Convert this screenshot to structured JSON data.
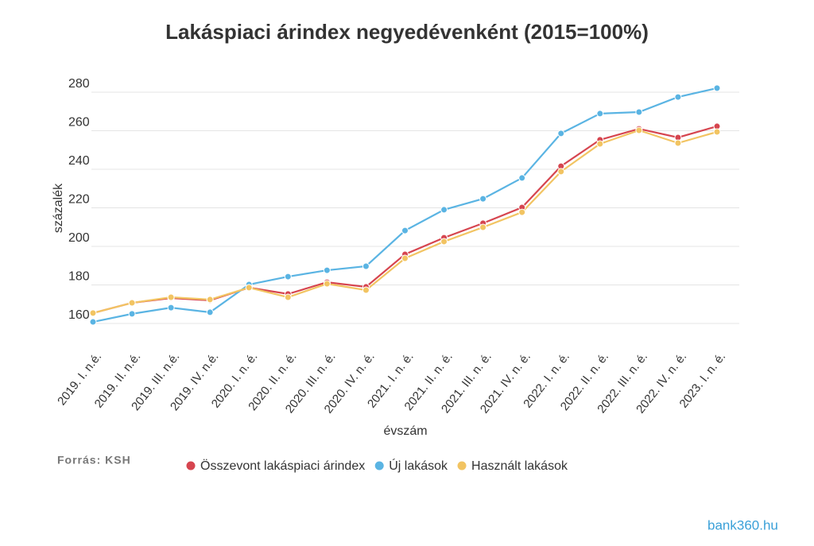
{
  "chart_data": {
    "type": "line",
    "title": "Lakáspiaci árindex negyedévenként (2015=100%)",
    "y_label": "százalék",
    "x_label": "évszám",
    "source": "Forrás: KSH",
    "logo": "bank360.hu",
    "categories": [
      "2019. I. n.é.",
      "2019. II. n.é.",
      "2019. III. n.é.",
      "2019. IV. n.é.",
      "2020. I. n. é.",
      "2020. II. n. é.",
      "2020. III. n. é.",
      "2020. IV. n. é.",
      "2021. I. n. é.",
      "2021. II. n. é.",
      "2021. III. n. é.",
      "2021. IV. n. é.",
      "2022. I. n. é.",
      "2022. II. n. é.",
      "2022. III. n. é.",
      "2022. IV. n. é.",
      "2023. I. n. é."
    ],
    "series": [
      {
        "name": "Összevont lakáspiaci árindex",
        "color": "#d6454f",
        "values": [
          165.4,
          170.7,
          173.2,
          172.0,
          178.6,
          175.3,
          181.4,
          179.0,
          195.9,
          204.5,
          212.0,
          220.2,
          241.6,
          255.3,
          261.0,
          256.5,
          262.3
        ]
      },
      {
        "name": "Új lakások",
        "color": "#5ab4e3",
        "values": [
          160.8,
          165.0,
          168.2,
          165.8,
          180.2,
          184.3,
          187.6,
          189.7,
          208.2,
          219.0,
          224.7,
          235.5,
          258.6,
          268.9,
          269.7,
          277.5,
          282.1
        ]
      },
      {
        "name": "Használt lakások",
        "color": "#f2c462",
        "values": [
          165.4,
          170.7,
          173.6,
          172.4,
          178.6,
          173.6,
          180.6,
          177.3,
          193.8,
          202.5,
          209.9,
          217.7,
          238.8,
          253.2,
          260.2,
          253.6,
          259.4
        ]
      }
    ],
    "ylim": [
      160,
      280
    ],
    "yticks": [
      160,
      180,
      200,
      220,
      240,
      260,
      280
    ],
    "grid": true
  }
}
